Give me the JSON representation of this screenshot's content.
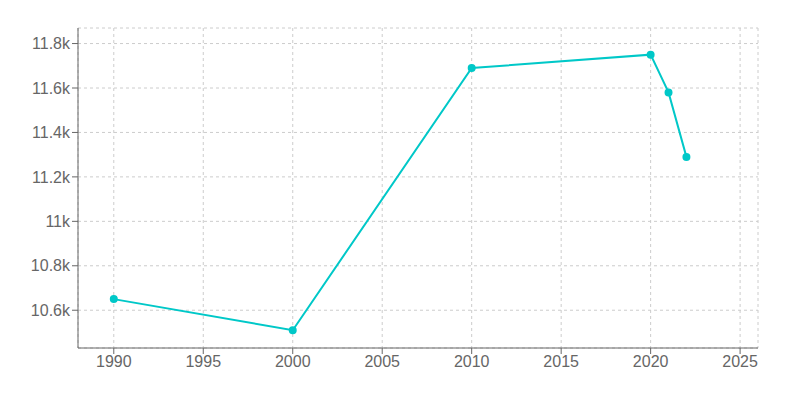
{
  "chart_data": {
    "type": "line",
    "x": [
      1990,
      2000,
      2010,
      2020,
      2021,
      2022
    ],
    "values": [
      10650,
      10510,
      11690,
      11750,
      11580,
      11290
    ],
    "color": "#00C8C8",
    "marker": "circle",
    "xlim": [
      1988,
      2026
    ],
    "ylim": [
      10430,
      11870
    ],
    "xticks": [
      1990,
      1995,
      2000,
      2005,
      2010,
      2015,
      2020,
      2025
    ],
    "yticks": [
      {
        "value": 10600,
        "label": "10.6k"
      },
      {
        "value": 10800,
        "label": "10.8k"
      },
      {
        "value": 11000,
        "label": "11k"
      },
      {
        "value": 11200,
        "label": "11.2k"
      },
      {
        "value": 11400,
        "label": "11.4k"
      },
      {
        "value": 11600,
        "label": "11.6k"
      },
      {
        "value": 11800,
        "label": "11.8k"
      }
    ],
    "grid": true
  }
}
